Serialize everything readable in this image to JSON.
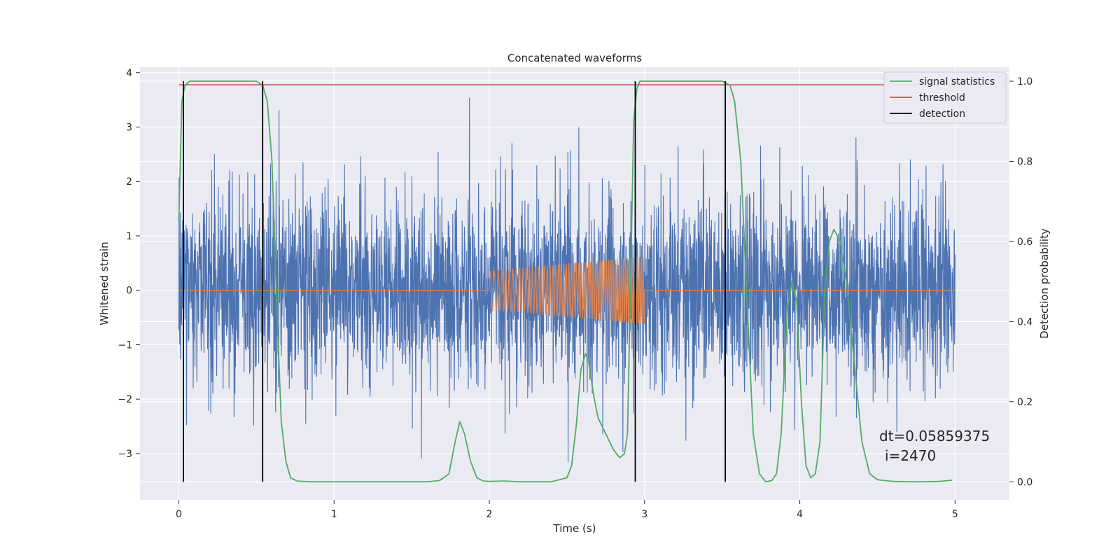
{
  "chart_data": {
    "type": "line",
    "title": "Concatenated waveforms",
    "xlabel": "Time (s)",
    "ylabel": "Whitened strain",
    "y2label": "Detection probability",
    "xlim": [
      -0.25,
      5.35
    ],
    "ylim": [
      -3.85,
      4.1
    ],
    "y2lim": [
      -0.045,
      1.035
    ],
    "x_ticks": [
      0,
      1,
      2,
      3,
      4,
      5
    ],
    "y_ticks": [
      -3,
      -2,
      -1,
      0,
      1,
      2,
      3,
      4
    ],
    "y2_ticks": [
      0.0,
      0.2,
      0.4,
      0.6,
      0.8,
      1.0
    ],
    "x_tick_labels": [
      "0",
      "1",
      "2",
      "3",
      "4",
      "5"
    ],
    "y_tick_labels": [
      "−3",
      "−2",
      "−1",
      "0",
      "1",
      "2",
      "3",
      "4"
    ],
    "y2_tick_labels": [
      "0.0",
      "0.2",
      "0.4",
      "0.6",
      "0.8",
      "1.0"
    ],
    "grid": true,
    "legend_position": "top-right",
    "colors": {
      "strain": "#4c72b0",
      "template": "#dd8452",
      "signal_statistics": "#55a868",
      "threshold": "#c44e52",
      "detection": "#000000",
      "background": "#eaeaf2"
    },
    "series": [
      {
        "name": "",
        "axis": "left",
        "kind": "noise",
        "x_range": [
          0,
          5
        ],
        "amplitude_range": [
          -3.5,
          3.75
        ],
        "typical_peak": 2.5
      },
      {
        "name": "",
        "axis": "left",
        "kind": "chirp",
        "x_range": [
          0,
          5
        ],
        "zero_outside": true,
        "active_range": [
          2.0,
          3.0
        ],
        "amplitude_start": 0.35,
        "amplitude_end": 0.62
      },
      {
        "name": "signal statistics",
        "axis": "right",
        "x": [
          0.0,
          0.01,
          0.02,
          0.04,
          0.07,
          0.1,
          0.2,
          0.3,
          0.4,
          0.5,
          0.54,
          0.57,
          0.6,
          0.63,
          0.66,
          0.69,
          0.72,
          0.76,
          0.85,
          1.0,
          1.2,
          1.4,
          1.6,
          1.68,
          1.74,
          1.78,
          1.81,
          1.84,
          1.88,
          1.92,
          1.96,
          2.0,
          2.1,
          2.2,
          2.4,
          2.5,
          2.53,
          2.56,
          2.59,
          2.62,
          2.64,
          2.67,
          2.7,
          2.75,
          2.8,
          2.84,
          2.87,
          2.89,
          2.91,
          2.93,
          2.95,
          2.97,
          3.0,
          3.1,
          3.2,
          3.3,
          3.4,
          3.5,
          3.55,
          3.58,
          3.62,
          3.66,
          3.7,
          3.74,
          3.78,
          3.82,
          3.85,
          3.88,
          3.92,
          3.95,
          3.98,
          4.01,
          4.04,
          4.07,
          4.1,
          4.13,
          4.16,
          4.19,
          4.22,
          4.26,
          4.3,
          4.35,
          4.4,
          4.45,
          4.5,
          4.6,
          4.7,
          4.8,
          4.9,
          4.98
        ],
        "y": [
          0.65,
          0.8,
          0.95,
          0.99,
          1.0,
          1.0,
          1.0,
          1.0,
          1.0,
          1.0,
          0.99,
          0.95,
          0.8,
          0.45,
          0.15,
          0.05,
          0.01,
          0.002,
          0.0,
          0.0,
          0.0,
          0.0,
          0.0,
          0.003,
          0.02,
          0.1,
          0.15,
          0.12,
          0.05,
          0.01,
          0.002,
          0.001,
          0.002,
          0.0,
          0.0,
          0.01,
          0.04,
          0.14,
          0.28,
          0.32,
          0.3,
          0.22,
          0.16,
          0.12,
          0.08,
          0.06,
          0.07,
          0.12,
          0.5,
          0.9,
          0.98,
          1.0,
          1.0,
          1.0,
          1.0,
          1.0,
          1.0,
          1.0,
          0.99,
          0.95,
          0.8,
          0.45,
          0.12,
          0.02,
          0.0,
          0.003,
          0.02,
          0.12,
          0.43,
          0.5,
          0.45,
          0.2,
          0.04,
          0.01,
          0.02,
          0.1,
          0.47,
          0.6,
          0.63,
          0.6,
          0.5,
          0.3,
          0.1,
          0.02,
          0.005,
          0.001,
          0.0,
          0.0,
          0.001,
          0.004
        ]
      },
      {
        "name": "threshold",
        "axis": "right",
        "value": 0.991,
        "x_range": [
          0,
          5
        ]
      },
      {
        "name": "detection",
        "axis": "right",
        "x": [
          0.03,
          0.54,
          2.94,
          3.52
        ],
        "y_range": [
          0,
          1.0
        ]
      }
    ],
    "annotations": [
      "dt=0.05859375",
      "i=2470"
    ]
  }
}
